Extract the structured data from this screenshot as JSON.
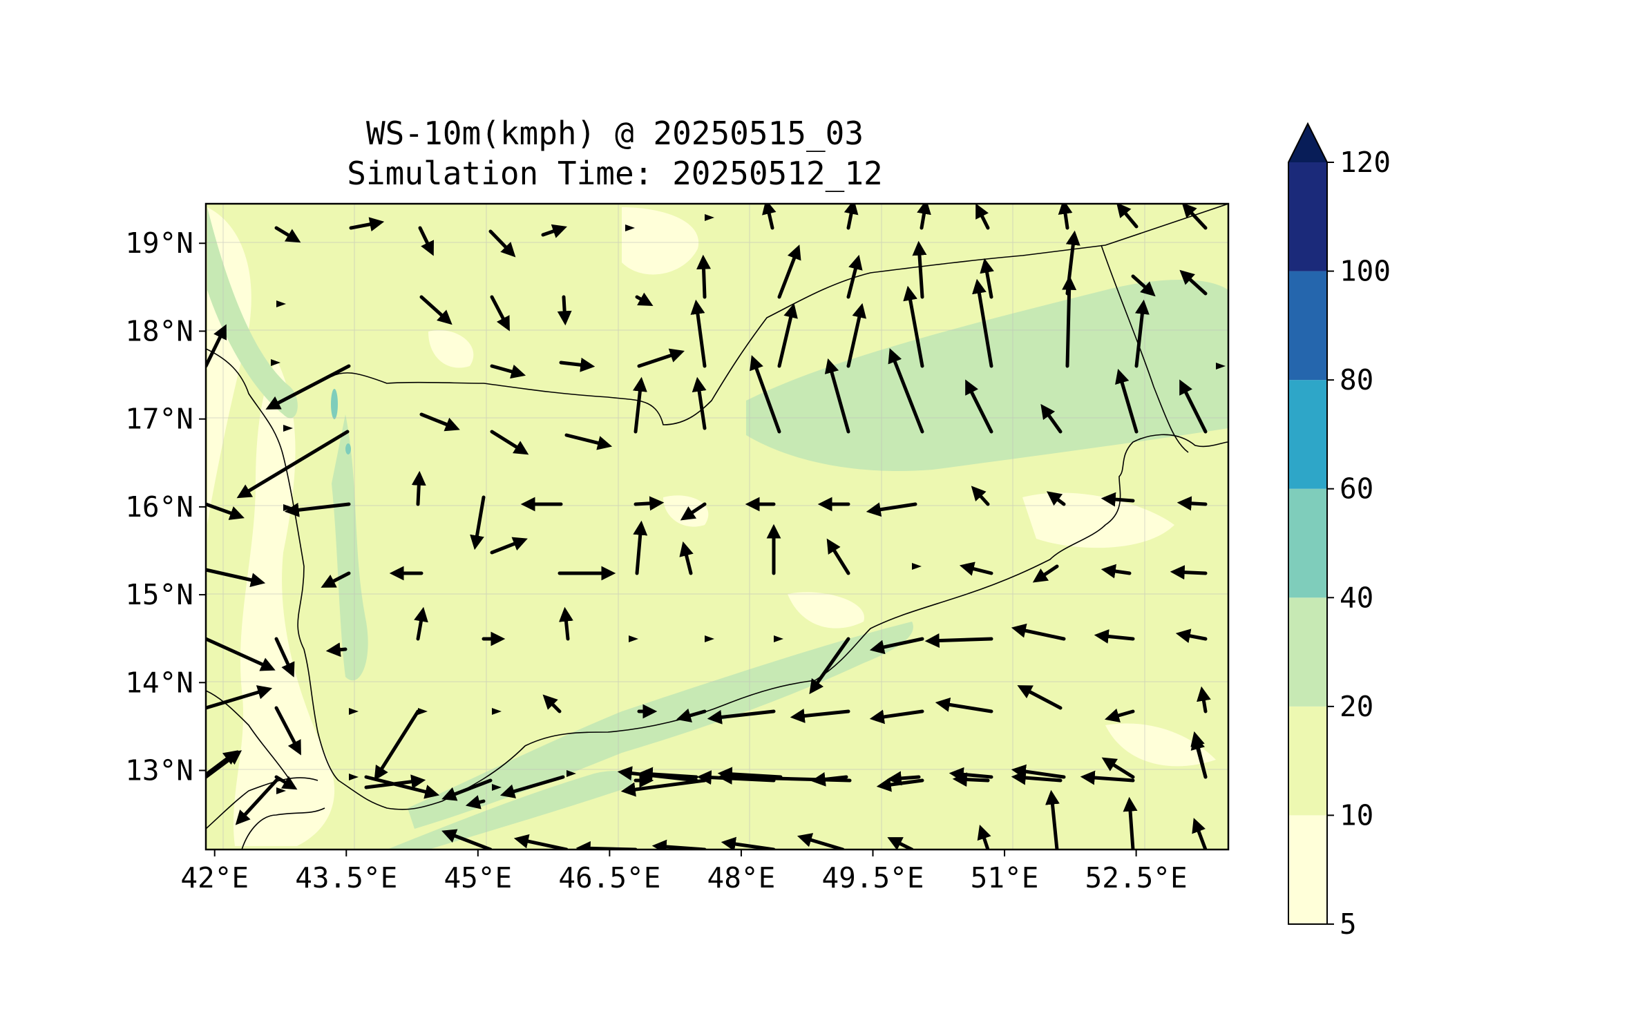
{
  "title": "WS-10m(kmph) @ 20250515_03",
  "subtitle": "Simulation Time: 20250512_12",
  "map": {
    "type": "filled-contour wind map with wind vectors",
    "lon_range": [
      41.9,
      53.55
    ],
    "lat_range": [
      12.1,
      19.45
    ],
    "x_ticks": [
      "42°E",
      "43.5°E",
      "45°E",
      "46.5°E",
      "48°E",
      "49.5°E",
      "51°E",
      "52.5°E"
    ],
    "y_ticks": [
      "19°N",
      "18°N",
      "17°N",
      "16°N",
      "15°N",
      "14°N",
      "13°N"
    ],
    "grid": true,
    "dominant_speed_band": "10-20"
  },
  "colorbar": {
    "levels": [
      "5",
      "10",
      "20",
      "40",
      "60",
      "80",
      "100",
      "120"
    ],
    "colors": [
      "#ffffd9",
      "#edf8b1",
      "#c7e9b4",
      "#7fcdbb",
      "#2ea6c8",
      "#2566ad",
      "#1b2a7a"
    ],
    "extend_color": "#081d58",
    "extend": "max"
  },
  "colors": {
    "vector": "#000000",
    "border": "#000000"
  }
}
